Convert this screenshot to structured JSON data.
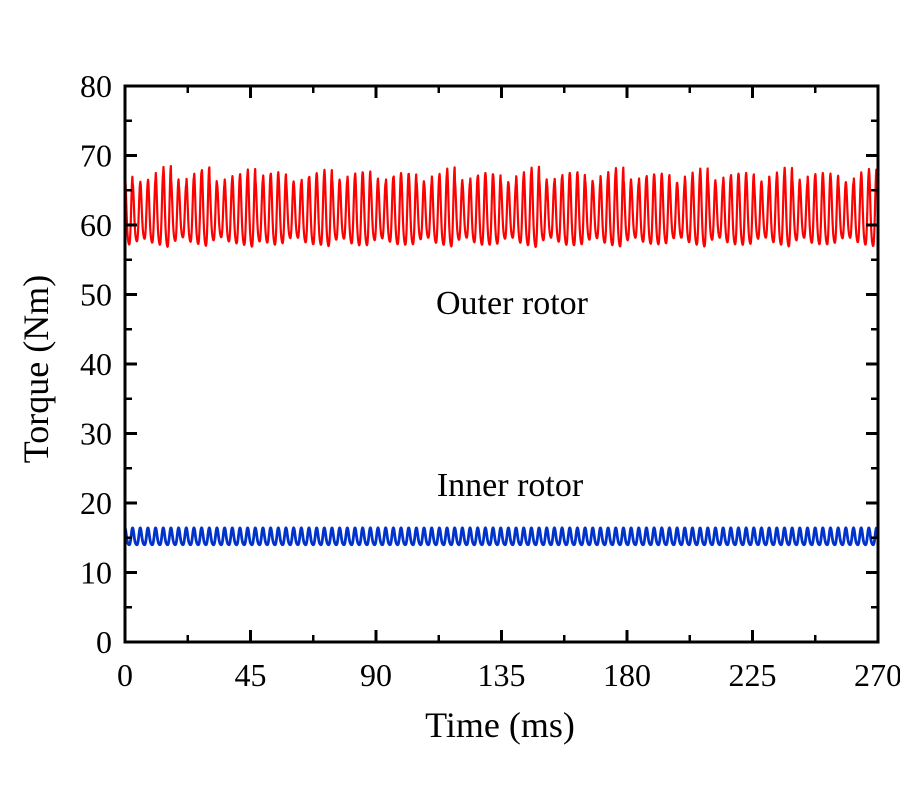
{
  "chart_data": {
    "type": "line",
    "title": "",
    "xlabel": "Time (ms)",
    "ylabel": "Torque (Nm)",
    "xlim": [
      0,
      270
    ],
    "ylim": [
      0,
      80
    ],
    "xticks": [
      0,
      45,
      90,
      135,
      180,
      225,
      270
    ],
    "yticks": [
      0,
      10,
      20,
      30,
      40,
      50,
      60,
      70,
      80
    ],
    "grid": false,
    "legend": "none",
    "series": [
      {
        "label": "Outer rotor",
        "color": "#ff0000",
        "pattern": "oscillating",
        "mean": 61.2,
        "min": 55.0,
        "max": 68.5,
        "period_ms": 2.75,
        "upper_envelope": [
          67.0,
          66.0,
          66.2,
          66.5,
          67.5,
          68.4,
          66.5,
          65.8,
          66.8,
          67.6,
          68.2,
          66.4,
          65.9,
          66.5,
          67.0,
          67.3,
          68.0,
          66.5,
          67.2,
          67.5,
          67.2,
          66.2,
          66.0,
          66.8,
          67.3,
          67.4,
          67.9,
          66.5,
          66.3,
          67.0,
          67.5,
          67.6,
          66.6,
          66.0,
          66.8,
          67.3,
          67.4,
          67.3,
          66.3,
          66.0,
          67.0,
          67.4,
          68.2,
          66.4,
          66.0,
          66.9,
          67.4,
          67.4,
          67.2,
          66.2,
          66.0,
          67.0,
          67.6,
          68.3,
          66.5,
          66.1,
          66.8,
          67.4,
          67.5,
          67.3,
          66.4,
          66.1,
          67.0,
          67.6,
          68.2,
          66.5,
          66.0,
          66.8,
          67.2,
          67.3,
          67.1,
          66.1,
          66.0,
          66.9,
          67.5,
          68.1,
          66.4,
          66.0,
          66.9,
          67.3,
          67.4,
          67.2,
          66.2,
          66.0,
          66.9,
          67.5,
          68.2,
          66.5,
          66.0,
          67.0,
          67.4,
          67.3,
          67.0,
          66.1,
          66.0,
          67.0,
          67.5,
          68.0,
          66.2
        ],
        "lower_envelope": [
          55.6,
          56.3,
          56.7,
          56.0,
          55.5,
          55.0,
          56.3,
          57.0,
          56.1,
          55.6,
          55.2,
          56.4,
          57.0,
          56.2,
          55.8,
          55.5,
          55.1,
          56.2,
          55.9,
          55.5,
          55.8,
          56.8,
          56.9,
          56.0,
          55.6,
          55.5,
          55.2,
          56.5,
          56.7,
          55.8,
          55.4,
          55.4,
          56.4,
          56.8,
          56.1,
          55.6,
          55.5,
          55.6,
          56.6,
          56.9,
          55.9,
          55.5,
          55.1,
          56.5,
          56.9,
          56.0,
          55.5,
          55.5,
          55.7,
          56.7,
          56.9,
          55.9,
          55.4,
          55.0,
          56.4,
          56.9,
          56.1,
          55.5,
          55.4,
          55.6,
          56.5,
          56.8,
          55.9,
          55.4,
          55.1,
          56.4,
          56.9,
          56.1,
          55.7,
          55.6,
          55.8,
          56.8,
          56.9,
          56.0,
          55.5,
          55.1,
          56.5,
          56.9,
          56.0,
          55.6,
          55.5,
          55.7,
          56.7,
          56.9,
          56.0,
          55.5,
          55.1,
          56.4,
          56.9,
          55.9,
          55.6,
          55.6,
          55.9,
          56.8,
          56.9,
          56.0,
          55.5,
          55.2,
          57.2
        ]
      },
      {
        "label": "Inner rotor",
        "color": "#0033cc",
        "pattern": "oscillating",
        "mean": 15.0,
        "min": 13.6,
        "max": 16.4,
        "period_ms": 2.75,
        "upper_envelope": [
          16.4
        ],
        "lower_envelope": [
          13.6
        ]
      }
    ]
  }
}
